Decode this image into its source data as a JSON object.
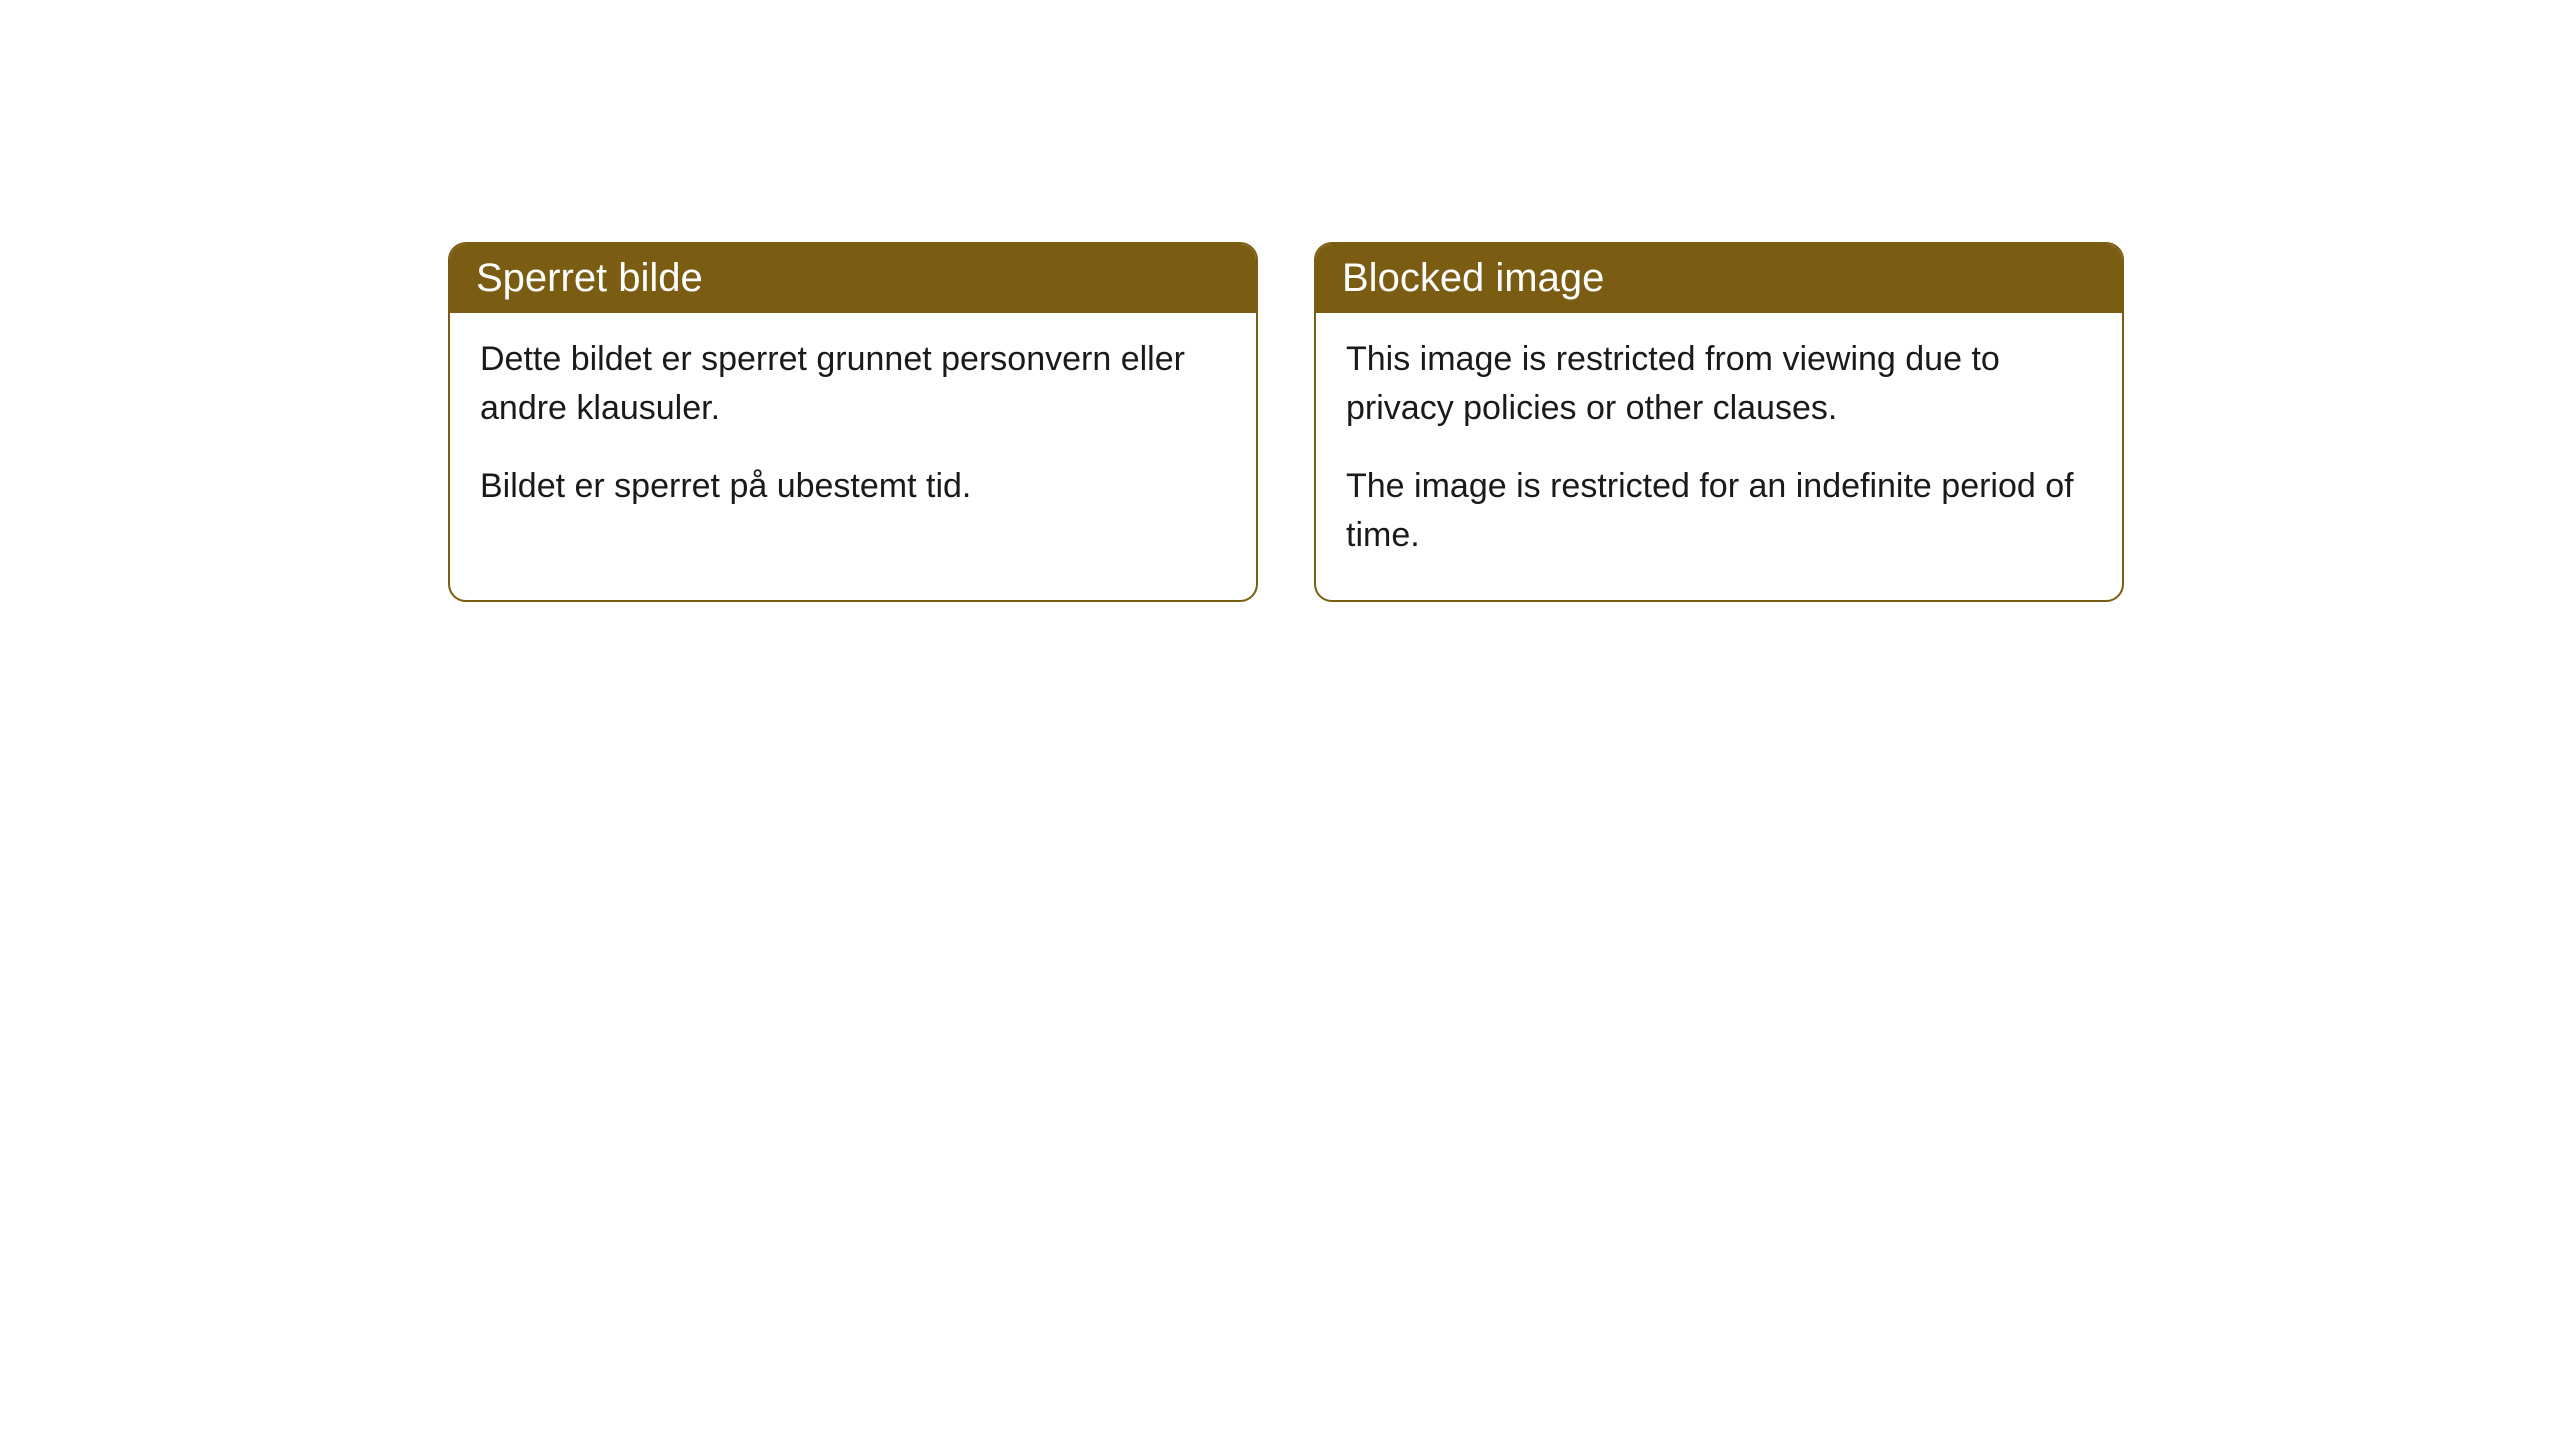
{
  "style": {
    "header_bg": "#7a5d12",
    "header_text_color": "#ffffff",
    "body_bg": "#ffffff",
    "body_text_color": "#1a1a1a",
    "border_color": "#7a5d12",
    "border_radius": 18,
    "header_fontsize": 40,
    "body_fontsize": 34
  },
  "cards": [
    {
      "title": "Sperret bilde",
      "p1": "Dette bildet er sperret grunnet personvern eller andre klausuler.",
      "p2": "Bildet er sperret på ubestemt tid."
    },
    {
      "title": "Blocked image",
      "p1": "This image is restricted from viewing due to privacy policies or other clauses.",
      "p2": "The image is restricted for an indefinite period of time."
    }
  ]
}
